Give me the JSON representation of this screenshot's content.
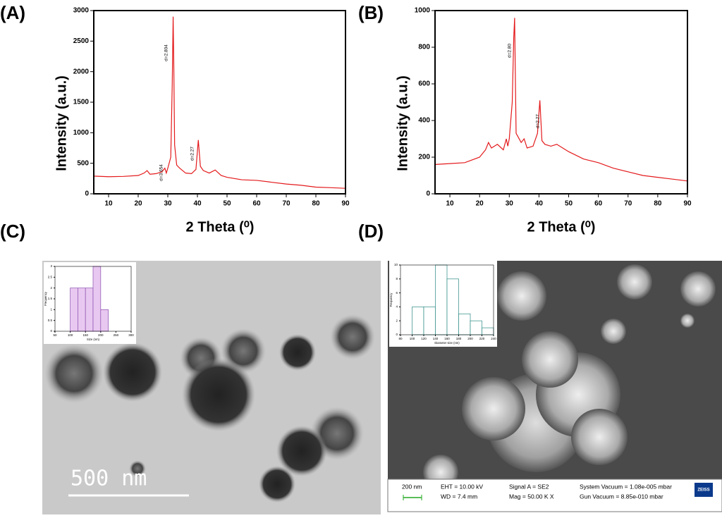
{
  "chart_data": [
    {
      "type": "line",
      "panel": "(A)",
      "xlabel": "2 Theta (⁰)",
      "ylabel": "Intensity (a.u.)",
      "color": "#e41a1c",
      "x": [
        5,
        10,
        15,
        20,
        22,
        23,
        24,
        26,
        28,
        29,
        29.5,
        30,
        31,
        31.5,
        31.8,
        32,
        32.3,
        33,
        34,
        35,
        36,
        38,
        39.5,
        40.3,
        41,
        42,
        44,
        46,
        48,
        50,
        55,
        60,
        65,
        70,
        75,
        80,
        85,
        90
      ],
      "values": [
        290,
        280,
        285,
        300,
        340,
        380,
        320,
        330,
        360,
        420,
        340,
        420,
        600,
        1800,
        2900,
        2200,
        800,
        470,
        420,
        380,
        340,
        330,
        400,
        880,
        450,
        380,
        340,
        390,
        300,
        270,
        230,
        220,
        190,
        160,
        140,
        110,
        100,
        90
      ],
      "xlim": [
        5,
        90
      ],
      "ylim": [
        0,
        3000
      ],
      "xticks": [
        10,
        20,
        30,
        40,
        50,
        60,
        70,
        80,
        90
      ],
      "yticks": [
        0,
        500,
        1000,
        1500,
        2000,
        2500,
        3000
      ],
      "annotations": [
        "d=3.654",
        "d=2.804",
        "d=2.27"
      ]
    },
    {
      "type": "line",
      "panel": "(B)",
      "xlabel": "2 Theta (⁰)",
      "ylabel": "Intensity (a.u.)",
      "color": "#e41a1c",
      "x": [
        5,
        10,
        15,
        20,
        22,
        23,
        24,
        26,
        28,
        29,
        29.5,
        30,
        31,
        31.5,
        31.8,
        32,
        32.3,
        33,
        34,
        35,
        36,
        38,
        39.5,
        40.3,
        41,
        42,
        44,
        46,
        48,
        50,
        55,
        60,
        65,
        70,
        75,
        80,
        85,
        90
      ],
      "values": [
        160,
        165,
        170,
        200,
        240,
        280,
        250,
        270,
        240,
        300,
        260,
        300,
        500,
        850,
        960,
        700,
        330,
        310,
        280,
        300,
        250,
        260,
        330,
        510,
        290,
        270,
        260,
        270,
        250,
        230,
        190,
        170,
        140,
        120,
        100,
        90,
        80,
        70
      ],
      "xlim": [
        5,
        90
      ],
      "ylim": [
        0,
        1000
      ],
      "xticks": [
        10,
        20,
        30,
        40,
        50,
        60,
        70,
        80,
        90
      ],
      "yticks": [
        0,
        200,
        400,
        600,
        800,
        1000
      ],
      "annotations": [
        "d=2.80",
        "d=2.27"
      ]
    },
    {
      "type": "histogram",
      "xlabel": "Size (nm)",
      "ylabel": "Frequency",
      "color": "#e8c8f0",
      "edge": "#8a4fb0",
      "bins": [
        100,
        125,
        150,
        175,
        200,
        225
      ],
      "values": [
        2,
        2,
        2,
        3,
        1
      ],
      "xlim": [
        50,
        300
      ],
      "ylim": [
        0,
        3
      ],
      "xticks": [
        50,
        100,
        150,
        200,
        250,
        300
      ],
      "yticks": [
        0,
        0.5,
        1,
        1.5,
        2,
        2.5,
        3
      ]
    },
    {
      "type": "histogram",
      "xlabel": "Diameter size (nm)",
      "ylabel": "Frequency",
      "color": "#ffffff",
      "edge": "#2a8a84",
      "bins": [
        100,
        120,
        140,
        160,
        180,
        200,
        220,
        240
      ],
      "values": [
        4,
        4,
        10,
        8,
        3,
        2,
        1
      ],
      "xlim": [
        80,
        240
      ],
      "ylim": [
        0,
        10
      ],
      "xticks": [
        80,
        100,
        120,
        140,
        160,
        180,
        200,
        220,
        240
      ],
      "yticks": [
        0,
        2,
        4,
        6,
        8,
        10
      ]
    }
  ],
  "images": {
    "c": {
      "panel": "(C)",
      "scale_bar": "500 nm"
    },
    "d": {
      "panel": "(D)",
      "scale_bar": "200 nm",
      "eht": "EHT = 10.00 kV",
      "wd": "WD = 7.4 mm",
      "signal": "Signal A = SE2",
      "mag": "Mag =  50.00 K X",
      "sys_vac": "System Vacuum = 1.08e-005 mbar",
      "gun_vac": "Gun Vacuum = 8.85e-010 mbar",
      "brand": "ZEISS"
    }
  }
}
